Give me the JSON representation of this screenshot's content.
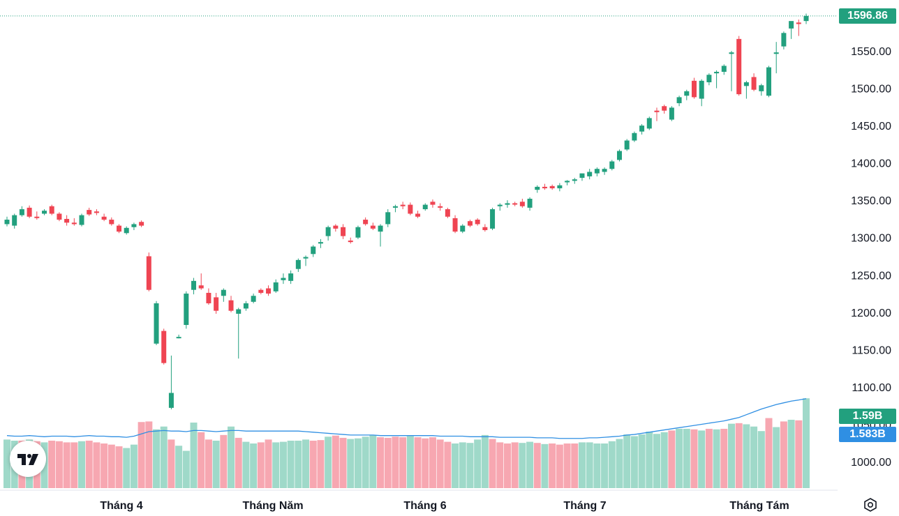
{
  "colors": {
    "up": "#22a07e",
    "down": "#ef4452",
    "vol_up": "#9fd9c9",
    "vol_down": "#f7a7b1",
    "ma": "#2f8fe3",
    "axis_text": "#131722",
    "last_price_line": "#22a07e",
    "vol_tag_bg": "#22a07e",
    "ma_tag_bg": "#2f8fe3"
  },
  "chart_data": {
    "type": "candlestick",
    "y_ticks": [
      "1000.00",
      "1050.00",
      "1100.00",
      "1150.00",
      "1200.00",
      "1250.00",
      "1300.00",
      "1350.00",
      "1400.00",
      "1450.00",
      "1500.00",
      "1550.00"
    ],
    "x_labels": [
      "Tháng 4",
      "Tháng Năm",
      "Tháng 6",
      "Tháng 7",
      "Tháng Tám"
    ],
    "last_price": "1596.86",
    "volume_last": "1.59B",
    "volume_ma_last": "1.583B",
    "ylim": [
      985,
      1605
    ],
    "candles": [
      [
        1318,
        1328,
        1315,
        1324
      ],
      [
        1316,
        1332,
        1312,
        1330
      ],
      [
        1330,
        1342,
        1328,
        1338
      ],
      [
        1340,
        1343,
        1326,
        1328
      ],
      [
        1328,
        1335,
        1324,
        1327
      ],
      [
        1332,
        1338,
        1330,
        1336
      ],
      [
        1342,
        1344,
        1330,
        1332
      ],
      [
        1332,
        1334,
        1322,
        1324
      ],
      [
        1325,
        1330,
        1316,
        1320
      ],
      [
        1320,
        1326,
        1316,
        1318
      ],
      [
        1317,
        1332,
        1315,
        1330
      ],
      [
        1337,
        1340,
        1329,
        1331
      ],
      [
        1335,
        1338,
        1330,
        1333
      ],
      [
        1328,
        1332,
        1322,
        1324
      ],
      [
        1324,
        1327,
        1316,
        1318
      ],
      [
        1316,
        1318,
        1306,
        1308
      ],
      [
        1306,
        1315,
        1304,
        1313
      ],
      [
        1314,
        1320,
        1310,
        1318
      ],
      [
        1321,
        1323,
        1314,
        1316
      ],
      [
        1275,
        1280,
        1228,
        1230
      ],
      [
        1158,
        1215,
        1156,
        1212
      ],
      [
        1175,
        1178,
        1130,
        1132
      ],
      [
        1072,
        1142,
        1070,
        1092
      ],
      [
        1167,
        1170,
        1165,
        1167
      ],
      [
        1183,
        1228,
        1178,
        1225
      ],
      [
        1230,
        1246,
        1224,
        1242
      ],
      [
        1236,
        1252,
        1230,
        1232
      ],
      [
        1226,
        1232,
        1210,
        1212
      ],
      [
        1220,
        1226,
        1198,
        1202
      ],
      [
        1222,
        1232,
        1214,
        1230
      ],
      [
        1216,
        1222,
        1200,
        1202
      ],
      [
        1198,
        1206,
        1138,
        1204
      ],
      [
        1205,
        1215,
        1202,
        1212
      ],
      [
        1214,
        1225,
        1212,
        1222
      ],
      [
        1230,
        1232,
        1224,
        1226
      ],
      [
        1232,
        1236,
        1222,
        1225
      ],
      [
        1228,
        1244,
        1226,
        1240
      ],
      [
        1243,
        1252,
        1238,
        1246
      ],
      [
        1242,
        1256,
        1238,
        1252
      ],
      [
        1258,
        1272,
        1254,
        1270
      ],
      [
        1272,
        1276,
        1262,
        1274
      ],
      [
        1278,
        1290,
        1274,
        1288
      ],
      [
        1292,
        1298,
        1286,
        1294
      ],
      [
        1302,
        1316,
        1296,
        1314
      ],
      [
        1316,
        1318,
        1308,
        1312
      ],
      [
        1314,
        1318,
        1298,
        1302
      ],
      [
        1296,
        1300,
        1292,
        1294
      ],
      [
        1300,
        1316,
        1298,
        1314
      ],
      [
        1324,
        1327,
        1316,
        1318
      ],
      [
        1316,
        1320,
        1310,
        1312
      ],
      [
        1308,
        1318,
        1288,
        1316
      ],
      [
        1318,
        1338,
        1314,
        1334
      ],
      [
        1340,
        1344,
        1334,
        1342
      ],
      [
        1344,
        1348,
        1338,
        1342
      ],
      [
        1344,
        1347,
        1330,
        1332
      ],
      [
        1332,
        1336,
        1326,
        1328
      ],
      [
        1338,
        1346,
        1336,
        1344
      ],
      [
        1348,
        1351,
        1340,
        1344
      ],
      [
        1342,
        1346,
        1336,
        1340
      ],
      [
        1338,
        1340,
        1326,
        1328
      ],
      [
        1326,
        1330,
        1306,
        1308
      ],
      [
        1308,
        1318,
        1306,
        1316
      ],
      [
        1322,
        1324,
        1314,
        1316
      ],
      [
        1324,
        1326,
        1316,
        1318
      ],
      [
        1314,
        1318,
        1308,
        1310
      ],
      [
        1312,
        1340,
        1310,
        1338
      ],
      [
        1342,
        1346,
        1336,
        1344
      ],
      [
        1344,
        1350,
        1340,
        1346
      ],
      [
        1346,
        1348,
        1342,
        1345
      ],
      [
        1348,
        1352,
        1340,
        1342
      ],
      [
        1340,
        1354,
        1336,
        1352
      ],
      [
        1364,
        1370,
        1360,
        1368
      ],
      [
        1368,
        1372,
        1364,
        1366
      ],
      [
        1369,
        1371,
        1364,
        1366
      ],
      [
        1366,
        1373,
        1362,
        1370
      ],
      [
        1374,
        1377,
        1370,
        1376
      ],
      [
        1376,
        1380,
        1372,
        1378
      ],
      [
        1380,
        1385,
        1376,
        1386
      ],
      [
        1382,
        1392,
        1378,
        1388
      ],
      [
        1386,
        1394,
        1382,
        1392
      ],
      [
        1388,
        1394,
        1384,
        1392
      ],
      [
        1392,
        1404,
        1390,
        1402
      ],
      [
        1404,
        1418,
        1402,
        1416
      ],
      [
        1418,
        1432,
        1416,
        1430
      ],
      [
        1430,
        1442,
        1428,
        1440
      ],
      [
        1442,
        1452,
        1438,
        1450
      ],
      [
        1446,
        1462,
        1444,
        1460
      ],
      [
        1470,
        1474,
        1456,
        1468
      ],
      [
        1476,
        1478,
        1466,
        1470
      ],
      [
        1458,
        1476,
        1456,
        1474
      ],
      [
        1480,
        1490,
        1476,
        1488
      ],
      [
        1490,
        1498,
        1484,
        1496
      ],
      [
        1510,
        1514,
        1486,
        1488
      ],
      [
        1486,
        1512,
        1476,
        1510
      ],
      [
        1508,
        1520,
        1504,
        1518
      ],
      [
        1520,
        1524,
        1500,
        1522
      ],
      [
        1522,
        1532,
        1518,
        1530
      ],
      [
        1546,
        1550,
        1496,
        1548
      ],
      [
        1566,
        1570,
        1490,
        1492
      ],
      [
        1503,
        1510,
        1486,
        1508
      ],
      [
        1515,
        1520,
        1496,
        1498
      ],
      [
        1496,
        1506,
        1490,
        1504
      ],
      [
        1490,
        1530,
        1488,
        1528
      ],
      [
        1546,
        1562,
        1520,
        1548
      ],
      [
        1556,
        1576,
        1552,
        1574
      ],
      [
        1580,
        1586,
        1566,
        1590
      ],
      [
        1588,
        1592,
        1570,
        1586
      ],
      [
        1590,
        1600,
        1586,
        1596.86
      ]
    ],
    "volumes": [
      0.86,
      0.84,
      0.84,
      0.86,
      0.83,
      0.81,
      0.84,
      0.83,
      0.81,
      0.81,
      0.83,
      0.84,
      0.81,
      0.79,
      0.77,
      0.74,
      0.71,
      0.77,
      1.17,
      1.18,
      1.04,
      1.09,
      0.86,
      0.75,
      0.66,
      1.16,
      0.99,
      0.86,
      0.84,
      0.94,
      1.09,
      0.89,
      0.82,
      0.79,
      0.81,
      0.86,
      0.81,
      0.82,
      0.84,
      0.84,
      0.86,
      0.84,
      0.85,
      0.91,
      0.93,
      0.89,
      0.87,
      0.88,
      0.91,
      0.94,
      0.9,
      0.89,
      0.91,
      0.9,
      0.92,
      0.9,
      0.88,
      0.9,
      0.86,
      0.82,
      0.79,
      0.81,
      0.8,
      0.86,
      0.94,
      0.87,
      0.81,
      0.79,
      0.81,
      0.8,
      0.82,
      0.8,
      0.78,
      0.79,
      0.77,
      0.79,
      0.79,
      0.81,
      0.81,
      0.79,
      0.79,
      0.83,
      0.87,
      0.95,
      0.92,
      0.95,
      1.0,
      0.96,
      0.99,
      1.02,
      1.05,
      1.05,
      1.04,
      1.02,
      1.05,
      1.04,
      1.05,
      1.14,
      1.15,
      1.13,
      1.09,
      1.01,
      1.24,
      1.08,
      1.18,
      1.21,
      1.2,
      1.59
    ],
    "volume_up": [
      1,
      1,
      0,
      1,
      0,
      1,
      0,
      0,
      0,
      0,
      1,
      0,
      0,
      0,
      0,
      0,
      1,
      1,
      0,
      0,
      1,
      1,
      0,
      1,
      1,
      1,
      0,
      0,
      1,
      0,
      1,
      0,
      1,
      1,
      0,
      0,
      1,
      1,
      1,
      1,
      1,
      0,
      0,
      1,
      0,
      0,
      1,
      1,
      1,
      1,
      0,
      0,
      0,
      0,
      1,
      0,
      0,
      0,
      0,
      0,
      1,
      1,
      1,
      1,
      1,
      0,
      0,
      0,
      0,
      1,
      1,
      0,
      1,
      0,
      0,
      0,
      0,
      1,
      1,
      1,
      1,
      1,
      1,
      1,
      1,
      1,
      1,
      1,
      1,
      0,
      1,
      1,
      0,
      1,
      0,
      1,
      0,
      1,
      0,
      1,
      1,
      1,
      0,
      1,
      0,
      1,
      0,
      1
    ],
    "volume_ma": [
      0.93,
      0.92,
      0.92,
      0.93,
      0.92,
      0.91,
      0.92,
      0.92,
      0.92,
      0.91,
      0.92,
      0.93,
      0.92,
      0.92,
      0.91,
      0.91,
      0.9,
      0.92,
      0.96,
      1.0,
      1.01,
      1.02,
      1.01,
      1.01,
      1.0,
      1.02,
      1.02,
      1.01,
      1.0,
      1.01,
      1.02,
      1.02,
      1.01,
      1.01,
      1.01,
      1.01,
      1.01,
      1.01,
      1.01,
      1.01,
      1.0,
      0.99,
      0.98,
      0.97,
      0.96,
      0.95,
      0.94,
      0.94,
      0.94,
      0.94,
      0.93,
      0.93,
      0.93,
      0.93,
      0.93,
      0.93,
      0.93,
      0.93,
      0.92,
      0.92,
      0.92,
      0.92,
      0.91,
      0.91,
      0.91,
      0.91,
      0.9,
      0.9,
      0.9,
      0.9,
      0.9,
      0.89,
      0.89,
      0.89,
      0.88,
      0.88,
      0.88,
      0.88,
      0.89,
      0.89,
      0.9,
      0.91,
      0.92,
      0.94,
      0.95,
      0.97,
      0.99,
      1.01,
      1.03,
      1.05,
      1.07,
      1.09,
      1.11,
      1.13,
      1.15,
      1.17,
      1.19,
      1.22,
      1.25,
      1.3,
      1.35,
      1.4,
      1.44,
      1.48,
      1.51,
      1.54,
      1.56,
      1.583
    ]
  }
}
